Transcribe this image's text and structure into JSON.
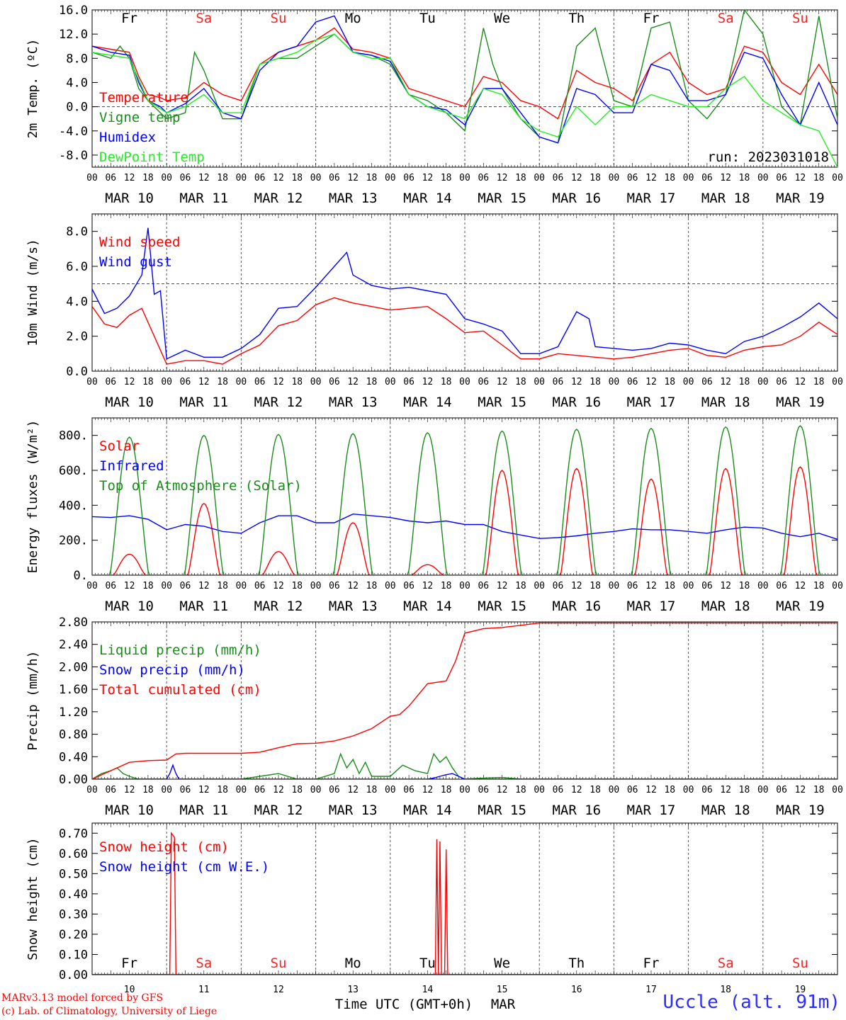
{
  "run_label": "run: 2023031018",
  "footer": {
    "model_line1": "MARv3.13 model forced by GFS",
    "model_line2": "(c) Lab. of Climatology, University of Liege",
    "station": "Uccle (alt. 91m)",
    "x_title": "Time UTC (GMT+0h)",
    "month": "MAR"
  },
  "colors": {
    "red": "#ff0000",
    "green": "#1a8c1a",
    "blue": "#0000ff",
    "light_green": "#22ee22",
    "weekend": "#ff2020",
    "weekday": "#000000"
  },
  "days": [
    {
      "date": "MAR 10",
      "num": "10",
      "weekday": "Fr",
      "weekend": false
    },
    {
      "date": "MAR 11",
      "num": "11",
      "weekday": "Sa",
      "weekend": true
    },
    {
      "date": "MAR 12",
      "num": "12",
      "weekday": "Su",
      "weekend": true
    },
    {
      "date": "MAR 13",
      "num": "13",
      "weekday": "Mo",
      "weekend": false
    },
    {
      "date": "MAR 14",
      "num": "14",
      "weekday": "Tu",
      "weekend": false
    },
    {
      "date": "MAR 15",
      "num": "15",
      "weekday": "We",
      "weekend": false
    },
    {
      "date": "MAR 16",
      "num": "16",
      "weekday": "Th",
      "weekend": false
    },
    {
      "date": "MAR 17",
      "num": "17",
      "weekday": "Fr",
      "weekend": false
    },
    {
      "date": "MAR 18",
      "num": "18",
      "weekday": "Sa",
      "weekend": true
    },
    {
      "date": "MAR 19",
      "num": "19",
      "weekday": "Su",
      "weekend": true
    }
  ],
  "hour_labels": [
    "00",
    "06",
    "12",
    "18"
  ],
  "chart_data": [
    {
      "type": "line",
      "id": "temp",
      "ylabel": "2m Temp. (ºC)",
      "ylim": [
        -10,
        16
      ],
      "yticks": [
        "-8.0",
        "-4.0",
        "0.0",
        "4.0",
        "8.0",
        "12.0",
        "16.0"
      ],
      "ref_line": 0,
      "x_unit": "hours since 2023-03-10 00 UTC",
      "xlim": [
        0,
        240
      ],
      "series": [
        {
          "name": "Temperature",
          "color": "red",
          "x": [
            0,
            6,
            12,
            15,
            18,
            22,
            24,
            30,
            36,
            42,
            48,
            54,
            60,
            66,
            72,
            78,
            84,
            90,
            96,
            102,
            108,
            114,
            120,
            126,
            132,
            138,
            144,
            150,
            156,
            162,
            168,
            174,
            180,
            186,
            192,
            198,
            204,
            210,
            216,
            222,
            228,
            234,
            240
          ],
          "y": [
            10,
            9.5,
            9,
            5,
            2,
            1.5,
            1,
            1.5,
            4,
            2,
            1,
            7,
            9,
            10,
            11,
            13,
            9.5,
            9,
            8,
            3,
            2,
            1,
            0,
            5,
            4,
            1,
            0,
            -2,
            6,
            4,
            3,
            1,
            7,
            9,
            4,
            2,
            3,
            10,
            9,
            4,
            2,
            7,
            2
          ]
        },
        {
          "name": "Vigne temp",
          "color": "green",
          "x": [
            0,
            6,
            9,
            12,
            15,
            18,
            22,
            24,
            30,
            33,
            36,
            42,
            48,
            54,
            60,
            66,
            72,
            78,
            84,
            90,
            96,
            102,
            108,
            114,
            120,
            126,
            129,
            132,
            138,
            144,
            150,
            156,
            162,
            168,
            174,
            180,
            186,
            192,
            198,
            204,
            210,
            216,
            222,
            228,
            234,
            240
          ],
          "y": [
            9,
            8,
            10,
            8,
            3,
            1,
            -1,
            -2,
            -1,
            9,
            6,
            -2,
            -2,
            7,
            8,
            8,
            10,
            12,
            9,
            8.5,
            7,
            2,
            1,
            -1,
            -4,
            13,
            7,
            3,
            -2,
            -5,
            -6,
            10,
            13,
            1,
            0,
            13,
            14,
            1,
            -2,
            2,
            16,
            12,
            0,
            -3,
            15,
            -2
          ]
        },
        {
          "name": "Humidex",
          "color": "blue",
          "x": [
            0,
            6,
            12,
            15,
            18,
            22,
            24,
            30,
            36,
            42,
            48,
            54,
            60,
            66,
            72,
            78,
            84,
            90,
            96,
            102,
            108,
            114,
            120,
            126,
            132,
            138,
            144,
            150,
            156,
            162,
            168,
            174,
            180,
            186,
            192,
            198,
            204,
            210,
            216,
            222,
            228,
            234,
            240
          ],
          "y": [
            10,
            9,
            8.5,
            4,
            1,
            0,
            -1,
            0.5,
            3,
            -1,
            -2,
            6,
            9,
            10,
            14,
            15,
            9,
            8.5,
            7.5,
            2,
            0,
            -0.5,
            -3,
            3,
            3,
            -1,
            -5,
            -6,
            3,
            2,
            -1,
            -1,
            7,
            6,
            1,
            1,
            2,
            9,
            8,
            2,
            -3,
            4,
            -3
          ]
        },
        {
          "name": "DewPoint Temp",
          "color": "light_green",
          "x": [
            0,
            12,
            18,
            24,
            30,
            36,
            42,
            48,
            54,
            60,
            66,
            72,
            78,
            84,
            90,
            96,
            102,
            108,
            114,
            120,
            126,
            132,
            138,
            144,
            150,
            156,
            162,
            168,
            174,
            180,
            186,
            192,
            198,
            204,
            210,
            216,
            222,
            228,
            234,
            240
          ],
          "y": [
            9,
            8,
            1,
            -1,
            0,
            2,
            -1,
            -1,
            7,
            8,
            9,
            11,
            12,
            9,
            8,
            8,
            2,
            0,
            -1,
            -2,
            3,
            2,
            -2,
            -4,
            -5,
            0,
            -3,
            0,
            0,
            2,
            1,
            0,
            0,
            3,
            5,
            1,
            -1,
            -3,
            -4,
            -10
          ]
        }
      ]
    },
    {
      "type": "line",
      "id": "wind",
      "ylabel": "10m Wind (m/s)",
      "ylim": [
        0,
        9
      ],
      "yticks": [
        "0.0",
        "2.0",
        "4.0",
        "6.0",
        "8.0"
      ],
      "ref_line": 5,
      "x_unit": "hours since 2023-03-10 00 UTC",
      "xlim": [
        0,
        240
      ],
      "series": [
        {
          "name": "Wind speed",
          "color": "red",
          "x": [
            0,
            4,
            8,
            12,
            16,
            20,
            24,
            30,
            36,
            42,
            48,
            54,
            60,
            66,
            72,
            78,
            84,
            90,
            96,
            102,
            108,
            114,
            120,
            126,
            132,
            138,
            144,
            150,
            156,
            162,
            168,
            174,
            180,
            186,
            192,
            198,
            204,
            210,
            216,
            222,
            228,
            234,
            240
          ],
          "y": [
            3.7,
            2.7,
            2.5,
            3.2,
            3.6,
            2.0,
            0.4,
            0.6,
            0.6,
            0.4,
            1.0,
            1.5,
            2.6,
            2.9,
            3.8,
            4.2,
            3.9,
            3.7,
            3.5,
            3.6,
            3.7,
            3.0,
            2.2,
            2.3,
            1.5,
            0.7,
            0.7,
            1.0,
            0.9,
            0.8,
            0.7,
            0.8,
            1.0,
            1.2,
            1.3,
            0.9,
            0.8,
            1.2,
            1.4,
            1.5,
            2.0,
            2.8,
            2.1
          ]
        },
        {
          "name": "Wind gust",
          "color": "blue",
          "x": [
            0,
            4,
            8,
            12,
            16,
            18,
            20,
            22,
            24,
            30,
            36,
            42,
            48,
            54,
            60,
            66,
            72,
            78,
            82,
            84,
            90,
            96,
            102,
            108,
            114,
            120,
            126,
            132,
            138,
            144,
            150,
            156,
            160,
            162,
            168,
            174,
            180,
            186,
            192,
            198,
            204,
            210,
            216,
            222,
            228,
            234,
            240
          ],
          "y": [
            4.7,
            3.3,
            3.6,
            4.3,
            5.5,
            8.2,
            4.4,
            4.6,
            0.7,
            1.2,
            0.8,
            0.8,
            1.3,
            2.1,
            3.6,
            3.7,
            4.8,
            6.0,
            6.8,
            5.5,
            4.9,
            4.7,
            4.8,
            4.6,
            4.4,
            3.0,
            2.7,
            2.3,
            1.0,
            1.0,
            1.4,
            3.4,
            3.0,
            1.4,
            1.3,
            1.2,
            1.3,
            1.6,
            1.5,
            1.2,
            1.0,
            1.7,
            2.0,
            2.5,
            3.1,
            3.9,
            3.0
          ]
        }
      ]
    },
    {
      "type": "line",
      "id": "energy",
      "ylabel": "Energy fluxes (W/m²)",
      "ylim": [
        0,
        900
      ],
      "yticks": [
        "0.",
        "200.",
        "400.",
        "600.",
        "800."
      ],
      "x_unit": "hours since 2023-03-10 00 UTC",
      "xlim": [
        0,
        240
      ],
      "series": [
        {
          "name": "Solar",
          "color": "red",
          "peak_hour": 12,
          "daily_peaks": [
            120,
            410,
            135,
            300,
            60,
            600,
            610,
            550,
            610,
            620
          ]
        },
        {
          "name": "Infrared",
          "color": "blue",
          "x": [
            0,
            6,
            12,
            18,
            24,
            30,
            36,
            42,
            48,
            54,
            60,
            66,
            72,
            78,
            84,
            90,
            96,
            102,
            108,
            114,
            120,
            126,
            132,
            138,
            144,
            150,
            156,
            162,
            168,
            174,
            180,
            186,
            192,
            198,
            204,
            210,
            216,
            222,
            228,
            234,
            240
          ],
          "y": [
            335,
            330,
            340,
            320,
            260,
            290,
            280,
            250,
            240,
            300,
            340,
            340,
            300,
            300,
            350,
            340,
            330,
            310,
            300,
            310,
            290,
            290,
            250,
            230,
            210,
            215,
            225,
            240,
            250,
            265,
            260,
            260,
            250,
            240,
            260,
            275,
            270,
            240,
            220,
            240,
            205
          ]
        },
        {
          "name": "Top of Atmosphere (Solar)",
          "color": "green",
          "peak_hour": 12,
          "daily_peaks": [
            790,
            800,
            805,
            810,
            815,
            825,
            835,
            840,
            848,
            855
          ]
        }
      ]
    },
    {
      "type": "line",
      "id": "precip",
      "ylabel": "Precip (mm/h)",
      "ylim": [
        0,
        2.8
      ],
      "yticks": [
        "0.00",
        "0.40",
        "0.80",
        "1.20",
        "1.60",
        "2.00",
        "2.40",
        "2.80"
      ],
      "x_unit": "hours since 2023-03-10 00 UTC",
      "xlim": [
        0,
        240
      ],
      "series": [
        {
          "name": "Liquid precip (mm/h)",
          "color": "green",
          "x": [
            0,
            3,
            6,
            8,
            10,
            12,
            15,
            18,
            24,
            36,
            48,
            54,
            60,
            66,
            72,
            78,
            80,
            82,
            84,
            86,
            88,
            90,
            96,
            100,
            104,
            108,
            110,
            112,
            114,
            116,
            118,
            120,
            126,
            132,
            138,
            144,
            240
          ],
          "y": [
            0,
            0.1,
            0.15,
            0.2,
            0.1,
            0.05,
            0,
            0,
            0,
            0,
            0,
            0.05,
            0.1,
            0,
            0,
            0.1,
            0.45,
            0.2,
            0.35,
            0.1,
            0.3,
            0.05,
            0.05,
            0.25,
            0.15,
            0.1,
            0.45,
            0.3,
            0.4,
            0.2,
            0.05,
            0,
            0.02,
            0.03,
            0,
            0,
            0
          ]
        },
        {
          "name": "Snow precip (mm/h)",
          "color": "blue",
          "x": [
            0,
            24,
            25,
            26,
            27,
            28,
            108,
            110,
            112,
            114,
            116,
            118,
            120,
            240
          ],
          "y": [
            0,
            0,
            0.1,
            0.25,
            0.1,
            0,
            0,
            0.02,
            0.05,
            0.08,
            0.1,
            0.05,
            0,
            0
          ]
        },
        {
          "name": "Total cumulated (cm)",
          "color": "red",
          "x": [
            0,
            6,
            12,
            18,
            24,
            27,
            30,
            48,
            54,
            60,
            66,
            72,
            78,
            84,
            90,
            96,
            99,
            102,
            108,
            114,
            117,
            120,
            126,
            132,
            138,
            144,
            240
          ],
          "y": [
            0,
            0.15,
            0.3,
            0.33,
            0.34,
            0.45,
            0.46,
            0.46,
            0.48,
            0.56,
            0.63,
            0.64,
            0.68,
            0.77,
            0.9,
            1.12,
            1.15,
            1.3,
            1.7,
            1.75,
            2.1,
            2.6,
            2.68,
            2.7,
            2.74,
            2.78,
            2.78
          ]
        }
      ]
    },
    {
      "type": "line",
      "id": "snow",
      "ylabel": "Snow height (cm)",
      "ylim": [
        0,
        0.75
      ],
      "yticks": [
        "0.00",
        "0.10",
        "0.20",
        "0.30",
        "0.40",
        "0.50",
        "0.60",
        "0.70"
      ],
      "x_unit": "hours since 2023-03-10 00 UTC",
      "xlim": [
        0,
        240
      ],
      "series": [
        {
          "name": "Snow height (cm)",
          "color": "red",
          "x": [
            0,
            25,
            25.5,
            26.5,
            27,
            110.5,
            111,
            111.5,
            112,
            112.5,
            113,
            113.5,
            114,
            114.5,
            115,
            240
          ],
          "y": [
            0,
            0,
            0.7,
            0.68,
            0,
            0,
            0.67,
            0,
            0.66,
            0,
            0,
            0,
            0.62,
            0,
            0,
            0
          ]
        },
        {
          "name": "Snow height (cm W.E.)",
          "color": "blue",
          "x": [
            0,
            240
          ],
          "y": [
            0,
            0
          ]
        }
      ]
    }
  ]
}
